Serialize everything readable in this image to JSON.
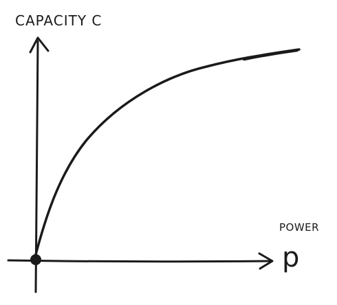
{
  "diagram": {
    "y_axis_label": "CAPACITY C",
    "x_axis_label_word": "POWER",
    "x_axis_label_symbol": "p"
  },
  "colors": {
    "ink": "#1a1a1a",
    "background": "#ffffff"
  }
}
